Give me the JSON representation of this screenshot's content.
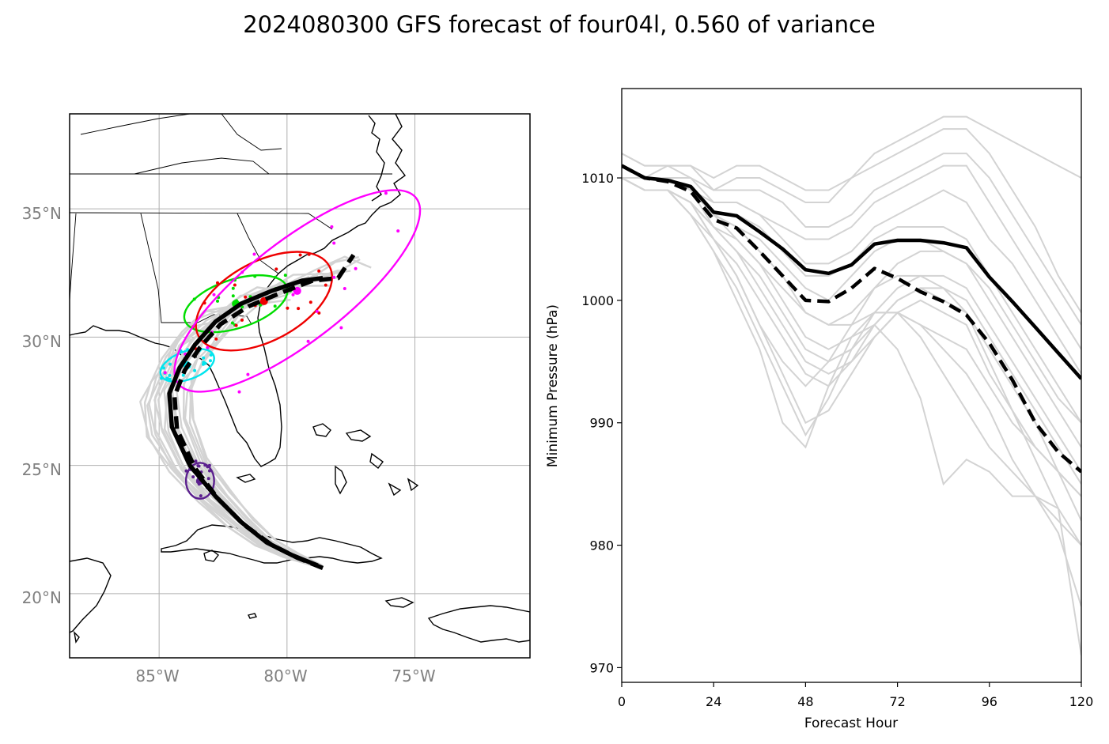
{
  "title": "2024080300 GFS forecast of four04l, 0.560 of variance",
  "colors": {
    "mean": "#000000",
    "members": "#d3d3d3",
    "grid": "#b0b0b0",
    "coast": "#000000",
    "ellipse_24h": "#5b1f8f",
    "ellipse_48h": "#00e5ee",
    "ellipse_72h": "#00dd00",
    "ellipse_96h": "#ee0000",
    "ellipse_120h": "#ff00ff"
  },
  "chart_data": [
    {
      "type": "map",
      "title": "",
      "xlabel": "",
      "ylabel": "",
      "lon_range": [
        -88.5,
        -70.5
      ],
      "lat_range": [
        17.5,
        38.7
      ],
      "lon_ticks": [
        "85°W",
        "80°W",
        "75°W"
      ],
      "lon_tick_values": [
        -85,
        -80,
        -75
      ],
      "lat_ticks": [
        "35°N",
        "30°N",
        "25°N",
        "20°N"
      ],
      "lat_tick_values": [
        35,
        30,
        25,
        20
      ],
      "grid": true,
      "series": [
        {
          "style": "solid",
          "points": [
            [
              -78.8,
              21.1
            ],
            [
              -79.8,
              21.5
            ],
            [
              -80.8,
              22.0
            ],
            [
              -81.8,
              22.8
            ],
            [
              -82.8,
              23.8
            ],
            [
              -83.8,
              25.0
            ],
            [
              -84.5,
              26.5
            ],
            [
              -84.6,
              27.8
            ],
            [
              -84.2,
              28.8
            ],
            [
              -83.6,
              29.7
            ],
            [
              -82.8,
              30.6
            ],
            [
              -81.8,
              31.3
            ],
            [
              -80.6,
              31.8
            ],
            [
              -79.4,
              32.2
            ],
            [
              -78.6,
              32.3
            ]
          ]
        },
        {
          "style": "dashed",
          "points": [
            [
              -78.6,
              21.0
            ],
            [
              -79.6,
              21.4
            ],
            [
              -80.6,
              21.9
            ],
            [
              -81.7,
              22.7
            ],
            [
              -82.7,
              23.7
            ],
            [
              -83.6,
              24.9
            ],
            [
              -84.3,
              26.4
            ],
            [
              -84.4,
              27.7
            ],
            [
              -84.0,
              28.7
            ],
            [
              -83.4,
              29.6
            ],
            [
              -82.6,
              30.5
            ],
            [
              -81.5,
              31.2
            ],
            [
              -80.3,
              31.7
            ],
            [
              -79.0,
              32.2
            ],
            [
              -78.0,
              32.3
            ],
            [
              -77.4,
              33.2
            ]
          ]
        }
      ],
      "ellipses": [
        {
          "hour": 24,
          "center": [
            -83.4,
            24.4
          ],
          "semi_axes_deg": [
            0.55,
            0.7
          ],
          "angle_deg": 0,
          "color": "#5b1f8f",
          "dot_count": 20
        },
        {
          "hour": 48,
          "center": [
            -83.9,
            28.9
          ],
          "semi_axes_deg": [
            1.1,
            0.55
          ],
          "angle_deg": 20,
          "color": "#00e5ee",
          "dot_count": 20
        },
        {
          "hour": 72,
          "center": [
            -82.0,
            31.3
          ],
          "semi_axes_deg": [
            2.1,
            0.95
          ],
          "angle_deg": 18,
          "color": "#00dd00",
          "dot_count": 20
        },
        {
          "hour": 96,
          "center": [
            -80.9,
            31.4
          ],
          "semi_axes_deg": [
            2.9,
            1.55
          ],
          "angle_deg": 28,
          "color": "#ee0000",
          "dot_count": 20
        },
        {
          "hour": 120,
          "center": [
            -79.6,
            31.8
          ],
          "semi_axes_deg": [
            5.9,
            1.95
          ],
          "angle_deg": 38,
          "color": "#ff00ff",
          "dot_count": 20
        }
      ]
    },
    {
      "type": "line",
      "title": "",
      "xlabel": "Forecast Hour",
      "ylabel": "Minimum Pressure (hPa)",
      "xlim": [
        0,
        120
      ],
      "ylim": [
        968.8,
        1017.3
      ],
      "xticks": [
        0,
        24,
        48,
        72,
        96,
        120
      ],
      "yticks": [
        970,
        980,
        990,
        1000,
        1010
      ],
      "x": [
        0,
        6,
        12,
        18,
        24,
        30,
        36,
        42,
        48,
        54,
        60,
        66,
        72,
        78,
        84,
        90,
        96,
        102,
        108,
        114,
        120
      ],
      "series": [
        {
          "style": "solid",
          "values": [
            1011,
            1010,
            1009.8,
            1009.3,
            1007.2,
            1006.9,
            1005.6,
            1004.2,
            1002.5,
            1002.2,
            1002.9,
            1004.6,
            1004.9,
            1004.9,
            1004.7,
            1004.3,
            1001.9,
            999.9,
            997.8,
            995.7,
            993.6
          ]
        },
        {
          "style": "dashed",
          "values": [
            1011,
            1010,
            1009.7,
            1008.9,
            1006.6,
            1005.9,
            1004.0,
            1002.0,
            1000.0,
            999.9,
            1001.0,
            1002.6,
            1001.8,
            1000.7,
            999.9,
            998.8,
            996.5,
            993.5,
            990.0,
            987.6,
            986.0
          ]
        }
      ],
      "members": [
        [
          1012,
          1011,
          1011,
          1011,
          1010,
          1011,
          1011,
          1010,
          1009,
          1009,
          1010,
          1012,
          1013,
          1014,
          1015,
          1015,
          1014,
          1013,
          1012,
          1011,
          1010
        ],
        [
          1012,
          1011,
          1011,
          1011,
          1009,
          1010,
          1010,
          1009,
          1008,
          1008,
          1010,
          1011,
          1012,
          1013,
          1014,
          1014,
          1012,
          1009,
          1006,
          1002,
          999
        ],
        [
          1011,
          1010,
          1011,
          1010,
          1009,
          1009,
          1009,
          1008,
          1006,
          1006,
          1007,
          1009,
          1010,
          1011,
          1012,
          1012,
          1010,
          1007,
          1004,
          1001,
          998
        ],
        [
          1011,
          1010,
          1010,
          1010,
          1008,
          1008,
          1007,
          1006,
          1005,
          1005,
          1006,
          1008,
          1009,
          1010,
          1011,
          1011,
          1008,
          1005,
          1002,
          999,
          996
        ],
        [
          1011,
          1010,
          1010,
          1009,
          1008,
          1008,
          1007,
          1005,
          1003,
          1003,
          1004,
          1006,
          1007,
          1008,
          1009,
          1008,
          1005,
          1003,
          1000,
          997,
          994
        ],
        [
          1011,
          1010,
          1010,
          1009,
          1007,
          1007,
          1006,
          1004,
          1002,
          1002,
          1003,
          1005,
          1006,
          1006,
          1006,
          1005,
          1002,
          999,
          996,
          993,
          990
        ],
        [
          1011,
          1010,
          1010,
          1009,
          1007,
          1006,
          1005,
          1003,
          1001,
          1000,
          1002,
          1004,
          1005,
          1005,
          1004,
          1003,
          1000,
          997,
          994,
          991,
          988
        ],
        [
          1010,
          1010,
          1010,
          1009,
          1007,
          1006,
          1004,
          1002,
          999,
          998,
          999,
          1001,
          1003,
          1004,
          1004,
          1003,
          1001,
          998,
          995,
          992,
          990
        ],
        [
          1010,
          1010,
          1010,
          1009,
          1006,
          1005,
          1003,
          1000,
          997,
          996,
          997,
          999,
          1001,
          1002,
          1002,
          1001,
          998,
          995,
          992,
          989,
          986
        ],
        [
          1010,
          1009,
          1009,
          1008,
          1006,
          1004,
          1002,
          999,
          996,
          995,
          996,
          998,
          1000,
          1001,
          1001,
          1000,
          997,
          994,
          991,
          988,
          985
        ],
        [
          1010,
          1009,
          1009,
          1008,
          1006,
          1004,
          1001,
          998,
          995,
          994,
          995,
          997,
          999,
          1000,
          999,
          998,
          994,
          991,
          988,
          986,
          984
        ],
        [
          1010,
          1009,
          1009,
          1008,
          1005,
          1003,
          1000,
          997,
          994,
          993,
          995,
          998,
          1000,
          1001,
          1000,
          999,
          996,
          993,
          990,
          986,
          982
        ],
        [
          1010,
          1009,
          1009,
          1008,
          1005,
          1002,
          998,
          995,
          993,
          995,
          998,
          1001,
          1002,
          1002,
          1001,
          999,
          995,
          991,
          987,
          983,
          980
        ],
        [
          1010,
          1009,
          1009,
          1007,
          1005,
          1002,
          998,
          994,
          990,
          991,
          994,
          997,
          999,
          998,
          996,
          994,
          991,
          987,
          984,
          982,
          980
        ],
        [
          1010,
          1009,
          1009,
          1007,
          1004,
          1001,
          997,
          993,
          989,
          992,
          996,
          999,
          999,
          997,
          994,
          991,
          988,
          986,
          984,
          981,
          975
        ],
        [
          1010,
          1009,
          1009,
          1007,
          1004,
          1000,
          996,
          990,
          988,
          993,
          997,
          998,
          996,
          992,
          985,
          987,
          986,
          984,
          984,
          983,
          971
        ],
        [
          1011,
          1010,
          1010,
          1009,
          1007,
          1005,
          1003,
          1001,
          999,
          998,
          998,
          999,
          999,
          998,
          997,
          996,
          993,
          990,
          988,
          986,
          984
        ]
      ]
    }
  ]
}
